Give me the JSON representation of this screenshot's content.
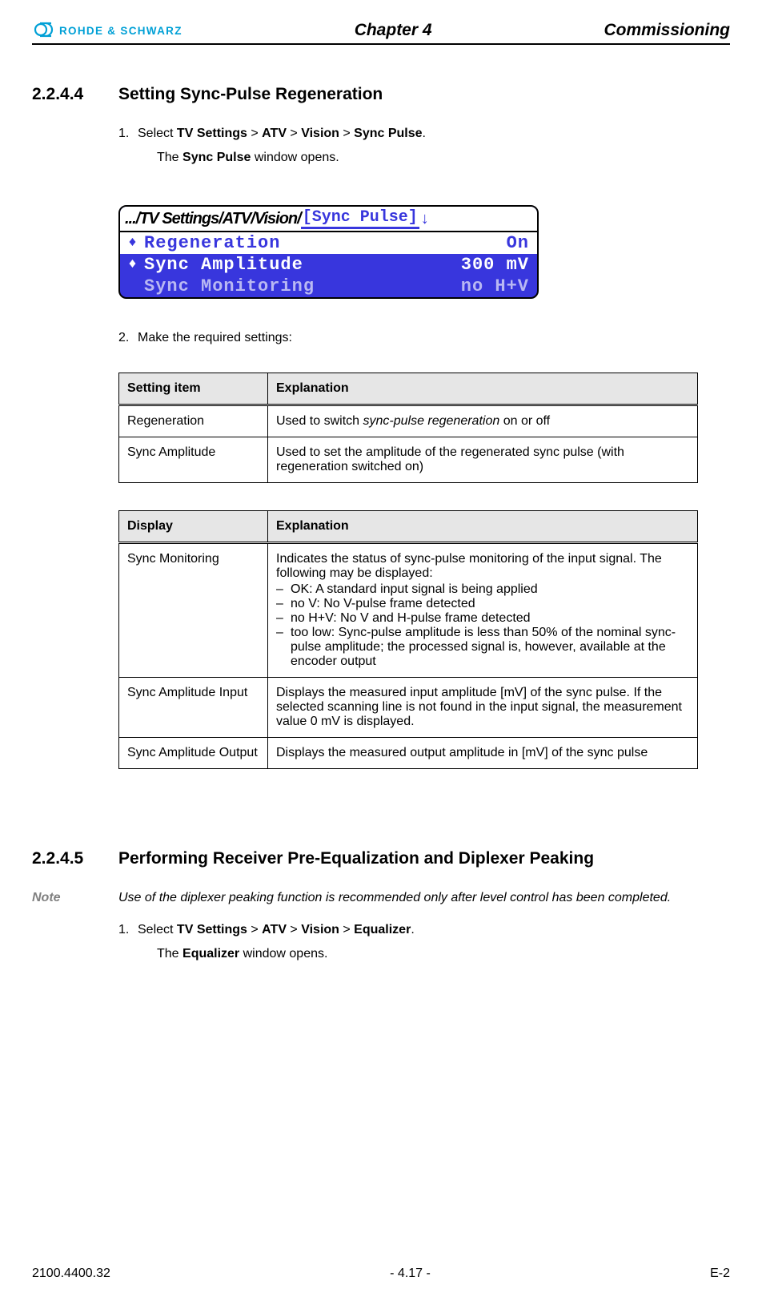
{
  "brand": {
    "name": "ROHDE & SCHWARZ",
    "color": "#00a0d6"
  },
  "header": {
    "chapter": "Chapter 4",
    "title": "Commissioning"
  },
  "section1": {
    "num": "2.2.4.4",
    "title": "Setting Sync-Pulse Regeneration",
    "step1_pre": "Select ",
    "step1_b1": "TV Settings",
    "step1_sep": " > ",
    "step1_b2": "ATV",
    "step1_b3": "Vision",
    "step1_b4": "Sync Pulse",
    "step1_post": ".",
    "step1_result_pre": "The ",
    "step1_result_b": "Sync Pulse",
    "step1_result_post": " window opens.",
    "step2": "Make the required settings:"
  },
  "screenshot": {
    "bg_color": "#3836dd",
    "dim_color": "#b9b8f3",
    "path_plain": ".../TV Settings/ATV/Vision/",
    "path_active": "[Sync Pulse]",
    "path_arrow": "↓",
    "rows": [
      {
        "marker": "♦",
        "label": "Regeneration",
        "value": "On",
        "selected": true,
        "dim": false
      },
      {
        "marker": "♦",
        "label": "Sync Amplitude",
        "value": "300 mV",
        "selected": false,
        "dim": false
      },
      {
        "marker": "",
        "label": "Sync Monitoring",
        "value": "no H+V",
        "selected": false,
        "dim": true
      }
    ]
  },
  "table1": {
    "h1": "Setting item",
    "h2": "Explanation",
    "rows": [
      {
        "c1": "Regeneration",
        "c2_pre": "Used to switch ",
        "c2_it": "sync-pulse regeneration",
        "c2_post": " on or off",
        "list": null
      },
      {
        "c1": "Sync Amplitude",
        "c2_pre": "Used to set the amplitude of the regenerated sync pulse (with regeneration switched on)",
        "c2_it": "",
        "c2_post": "",
        "list": null
      }
    ]
  },
  "table2": {
    "h1": "Display",
    "h2": "Explanation",
    "rows": [
      {
        "c1": "Sync Monitoring",
        "c2_pre": "Indicates the status of sync-pulse monitoring of the input signal. The following may be displayed:",
        "c2_it": "",
        "c2_post": "",
        "list": [
          "OK: A standard input signal is being applied",
          "no V: No V-pulse frame detected",
          "no H+V: No V and H-pulse frame detected",
          "too low: Sync-pulse amplitude is less than 50% of the nominal sync-pulse amplitude; the processed signal is, however, available at the encoder output"
        ]
      },
      {
        "c1": "Sync Amplitude Input",
        "c2_pre": "Displays the measured input amplitude [mV] of the sync pulse. If the selected scanning line is not found in the input signal, the measurement value 0 mV is displayed.",
        "c2_it": "",
        "c2_post": "",
        "list": null
      },
      {
        "c1": "Sync Amplitude Output",
        "c2_pre": "Displays the measured output amplitude in [mV] of the sync pulse",
        "c2_it": "",
        "c2_post": "",
        "list": null
      }
    ]
  },
  "section2": {
    "num": "2.2.4.5",
    "title": "Performing Receiver Pre-Equalization and Diplexer Peaking",
    "note_label": "Note",
    "note_body": "Use of the diplexer peaking function is recommended only after level control has been completed.",
    "step1_pre": "Select ",
    "step1_b1": "TV Settings",
    "step1_sep": " > ",
    "step1_b2": "ATV",
    "step1_b3": "Vision",
    "step1_b4": "Equalizer",
    "step1_post": ".",
    "step1_result_pre": "The ",
    "step1_result_b": "Equalizer",
    "step1_result_post": " window opens."
  },
  "footer": {
    "left": "2100.4400.32",
    "center": "- 4.17 -",
    "right": "E-2"
  }
}
